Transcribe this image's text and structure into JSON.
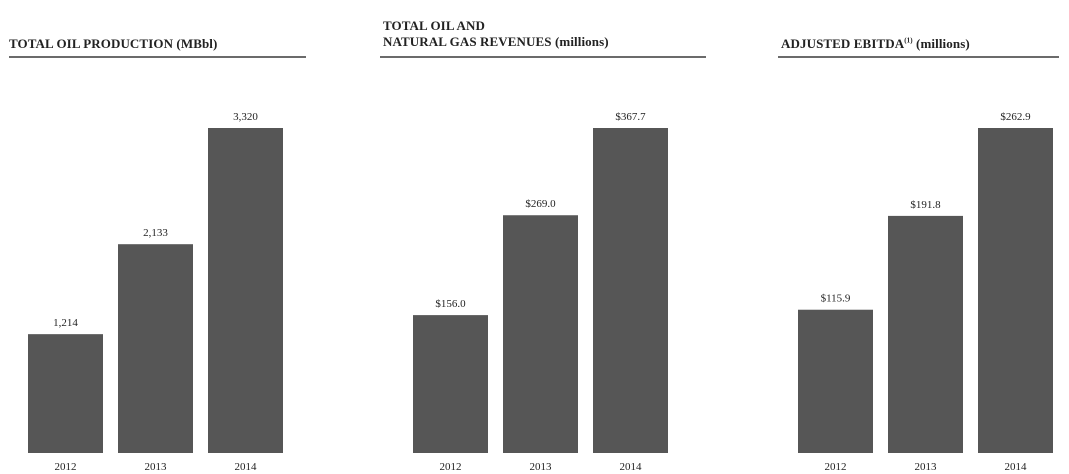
{
  "bar_color": "#565656",
  "text_color": "#222222",
  "rule_color": "#6b6b6b",
  "chart_data": [
    {
      "type": "bar",
      "title": "TOTAL OIL PRODUCTION (MBbl)",
      "categories": [
        "2012",
        "2013",
        "2014"
      ],
      "values": [
        1214,
        2133,
        3320
      ],
      "value_labels": [
        "1,214",
        "2,133",
        "3,320"
      ],
      "ylim": [
        0,
        3320
      ]
    },
    {
      "type": "bar",
      "title_line1": "TOTAL OIL AND",
      "title_line2": "NATURAL GAS REVENUES (millions)",
      "categories": [
        "2012",
        "2013",
        "2014"
      ],
      "values": [
        156.0,
        269.0,
        367.7
      ],
      "value_labels": [
        "$156.0",
        "$269.0",
        "$367.7"
      ],
      "ylim": [
        0,
        367.7
      ]
    },
    {
      "type": "bar",
      "title_main": "ADJUSTED EBITDA",
      "title_sup": "(1)",
      "title_suffix": " (millions)",
      "categories": [
        "2012",
        "2013",
        "2014"
      ],
      "values": [
        115.9,
        191.8,
        262.9
      ],
      "value_labels": [
        "$115.9",
        "$191.8",
        "$262.9"
      ],
      "ylim": [
        0,
        262.9
      ]
    }
  ]
}
